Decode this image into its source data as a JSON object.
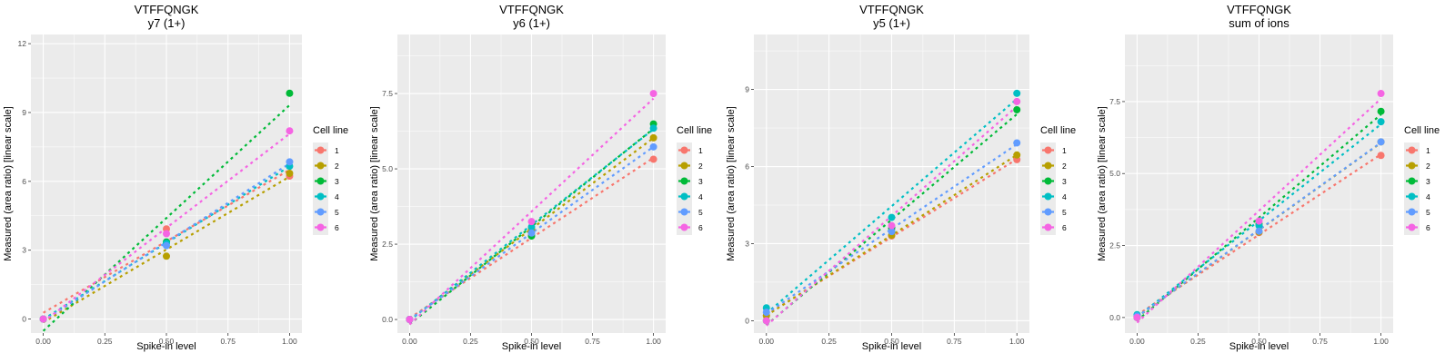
{
  "chart_data": [
    {
      "type": "scatter",
      "title": "VTFFQNGK",
      "subtitle": "y7 (1+)",
      "xlabel": "Spike-in level",
      "ylabel": "Measured (area ratio) [linear scale]",
      "xlim": [
        -0.05,
        1.05
      ],
      "ylim": [
        -0.61,
        12.4
      ],
      "xticks": [
        0,
        0.25,
        0.5,
        0.75,
        1.0
      ],
      "xtick_labels": [
        "0.00",
        "0.25",
        "0.50",
        "0.75",
        "1.00"
      ],
      "yticks": [
        0,
        3,
        6,
        9,
        12
      ],
      "ytick_labels": [
        "0",
        "3",
        "6",
        "9",
        "12"
      ],
      "grid": true,
      "fit_lines": "linear, dashed",
      "x": [
        0,
        0.5,
        1.0
      ],
      "series": [
        {
          "name": "1",
          "values": [
            0.0,
            3.93,
            6.23
          ]
        },
        {
          "name": "2",
          "values": [
            0.0,
            2.74,
            6.35
          ]
        },
        {
          "name": "3",
          "values": [
            0.0,
            3.36,
            9.84
          ]
        },
        {
          "name": "4",
          "values": [
            0.0,
            3.3,
            6.66
          ]
        },
        {
          "name": "5",
          "values": [
            0.0,
            3.2,
            6.85
          ]
        },
        {
          "name": "6",
          "values": [
            0.0,
            3.72,
            8.2
          ]
        }
      ]
    },
    {
      "type": "scatter",
      "title": "VTFFQNGK",
      "subtitle": "y6 (1+)",
      "xlabel": "Spike-in level",
      "ylabel": "Measured (area ratio) [linear scale]",
      "xlim": [
        -0.05,
        1.05
      ],
      "ylim": [
        -0.45,
        9.46
      ],
      "xticks": [
        0,
        0.25,
        0.5,
        0.75,
        1.0
      ],
      "xtick_labels": [
        "0.00",
        "0.25",
        "0.50",
        "0.75",
        "1.00"
      ],
      "yticks": [
        0,
        2.5,
        5.0,
        7.5
      ],
      "ytick_labels": [
        "0.0",
        "2.5",
        "5.0",
        "7.5"
      ],
      "grid": true,
      "fit_lines": "linear, dashed",
      "x": [
        0,
        0.5,
        1.0
      ],
      "series": [
        {
          "name": "1",
          "values": [
            0.0,
            2.8,
            5.32
          ]
        },
        {
          "name": "2",
          "values": [
            0.0,
            3.0,
            6.03
          ]
        },
        {
          "name": "3",
          "values": [
            0.0,
            2.77,
            6.49
          ]
        },
        {
          "name": "4",
          "values": [
            0.0,
            3.07,
            6.35
          ]
        },
        {
          "name": "5",
          "values": [
            0.0,
            2.87,
            5.73
          ]
        },
        {
          "name": "6",
          "values": [
            0.0,
            3.25,
            7.5
          ]
        }
      ]
    },
    {
      "type": "scatter",
      "title": "VTFFQNGK",
      "subtitle": "y5 (1+)",
      "xlabel": "Spike-in level",
      "ylabel": "Measured (area ratio) [linear scale]",
      "xlim": [
        -0.05,
        1.05
      ],
      "ylim": [
        -0.48,
        11.14
      ],
      "xticks": [
        0,
        0.25,
        0.5,
        0.75,
        1.0
      ],
      "xtick_labels": [
        "0.00",
        "0.25",
        "0.50",
        "0.75",
        "1.00"
      ],
      "yticks": [
        0,
        3,
        6,
        9
      ],
      "ytick_labels": [
        "0",
        "3",
        "6",
        "9"
      ],
      "grid": true,
      "fit_lines": "linear, dashed",
      "x": [
        0,
        0.5,
        1.0
      ],
      "series": [
        {
          "name": "1",
          "values": [
            0.2,
            3.3,
            6.27
          ]
        },
        {
          "name": "2",
          "values": [
            0.2,
            3.33,
            6.45
          ]
        },
        {
          "name": "3",
          "values": [
            0.0,
            3.59,
            8.21
          ]
        },
        {
          "name": "4",
          "values": [
            0.5,
            4.02,
            8.85
          ]
        },
        {
          "name": "5",
          "values": [
            0.33,
            3.47,
            6.92
          ]
        },
        {
          "name": "6",
          "values": [
            0.0,
            3.7,
            8.53
          ]
        }
      ]
    },
    {
      "type": "scatter",
      "title": "VTFFQNGK",
      "subtitle": "sum of ions",
      "xlabel": "Spike-in level",
      "ylabel": "Measured (area ratio) [linear scale]",
      "xlim": [
        -0.05,
        1.05
      ],
      "ylim": [
        -0.54,
        9.83
      ],
      "xticks": [
        0,
        0.25,
        0.5,
        0.75,
        1.0
      ],
      "xtick_labels": [
        "0.00",
        "0.25",
        "0.50",
        "0.75",
        "1.00"
      ],
      "yticks": [
        0,
        2.5,
        5.0,
        7.5
      ],
      "ytick_labels": [
        "0.0",
        "2.5",
        "5.0",
        "7.5"
      ],
      "grid": true,
      "fit_lines": "linear, dashed",
      "x": [
        0,
        0.5,
        1.0
      ],
      "series": [
        {
          "name": "1",
          "values": [
            0.05,
            2.95,
            5.63
          ]
        },
        {
          "name": "2",
          "values": [
            0.05,
            2.97,
            6.1
          ]
        },
        {
          "name": "3",
          "values": [
            0.0,
            3.25,
            7.16
          ]
        },
        {
          "name": "4",
          "values": [
            0.1,
            3.19,
            6.8
          ]
        },
        {
          "name": "5",
          "values": [
            0.05,
            3.0,
            6.1
          ]
        },
        {
          "name": "6",
          "values": [
            0.0,
            3.35,
            7.78
          ]
        }
      ]
    }
  ],
  "legend": {
    "title": "Cell line",
    "placement": "right",
    "entries": [
      {
        "label": "1",
        "color": "#F8766D"
      },
      {
        "label": "2",
        "color": "#B79F00"
      },
      {
        "label": "3",
        "color": "#00BA38"
      },
      {
        "label": "4",
        "color": "#00BFC4"
      },
      {
        "label": "5",
        "color": "#619CFF"
      },
      {
        "label": "6",
        "color": "#F564E3"
      }
    ]
  },
  "colors": {
    "panel_background": "#EBEBEB",
    "grid_major": "#FFFFFF",
    "tick_text": "#4D4D4D"
  }
}
